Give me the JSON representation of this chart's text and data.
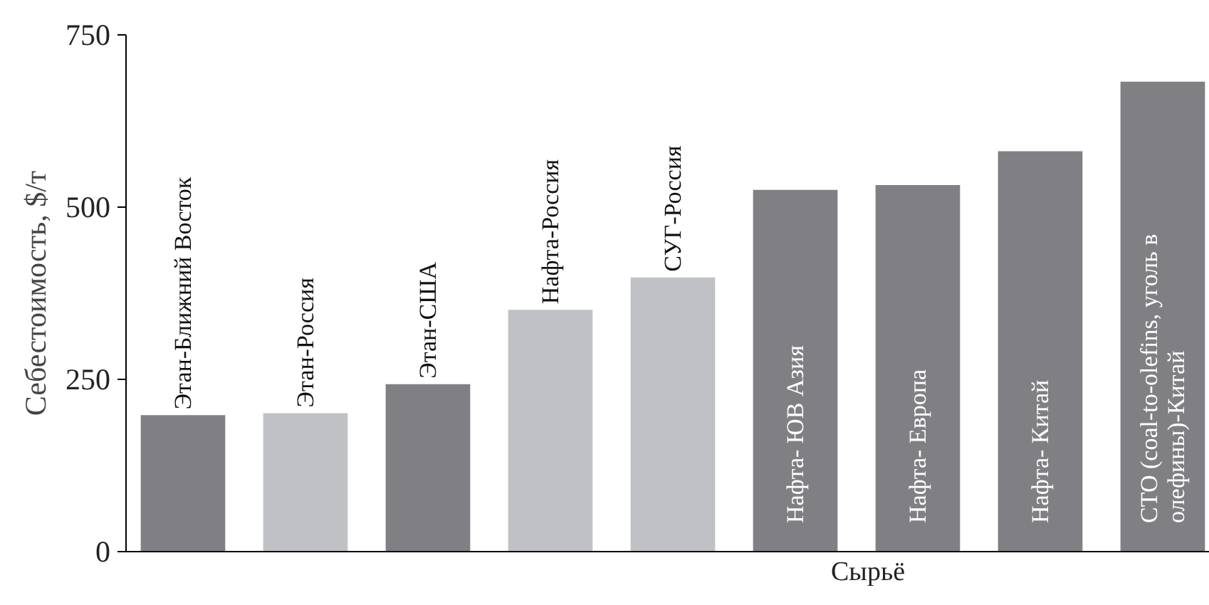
{
  "chart_data": {
    "type": "bar",
    "xlabel": "Сырьё",
    "ylabel": "Себестоимость, $/т",
    "categories": [
      "Этан-Ближний Восток",
      "Этан-Россия",
      "Этан-США",
      "Нафта-Россия",
      "СУГ-Россия",
      "Нафта- ЮВ Азия",
      "Нафта- Европа",
      "Нафта- Китай",
      "СТО (coal-to-olefins, уголь в\nолефины)-Китай"
    ],
    "values": [
      198,
      201,
      243,
      351,
      398,
      525,
      532,
      581,
      682
    ],
    "colors": [
      "#808084",
      "#c0c1c4",
      "#808084",
      "#c0c1c4",
      "#c0c1c4",
      "#808084",
      "#808084",
      "#808084",
      "#808084"
    ],
    "ylim": [
      0,
      750
    ],
    "yticks": [
      0,
      250,
      500,
      750
    ],
    "grid": false
  }
}
